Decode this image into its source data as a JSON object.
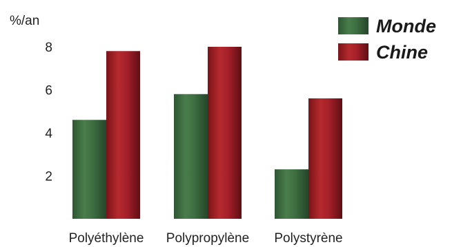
{
  "chart_data": {
    "type": "bar",
    "ylabel": "%/an",
    "y_ticks": [
      "2",
      "4",
      "6",
      "8"
    ],
    "ylim": [
      0,
      9
    ],
    "categories": [
      "Polyéthylène",
      "Polypropylène",
      "Polystyrène"
    ],
    "series": [
      {
        "name": "Monde",
        "color": "#3a6a3e",
        "values": [
          4.6,
          5.8,
          2.3
        ]
      },
      {
        "name": "Chine",
        "color": "#a51e24",
        "values": [
          7.8,
          8.0,
          5.6
        ]
      }
    ],
    "legend_position": "top-right",
    "grid": false
  }
}
